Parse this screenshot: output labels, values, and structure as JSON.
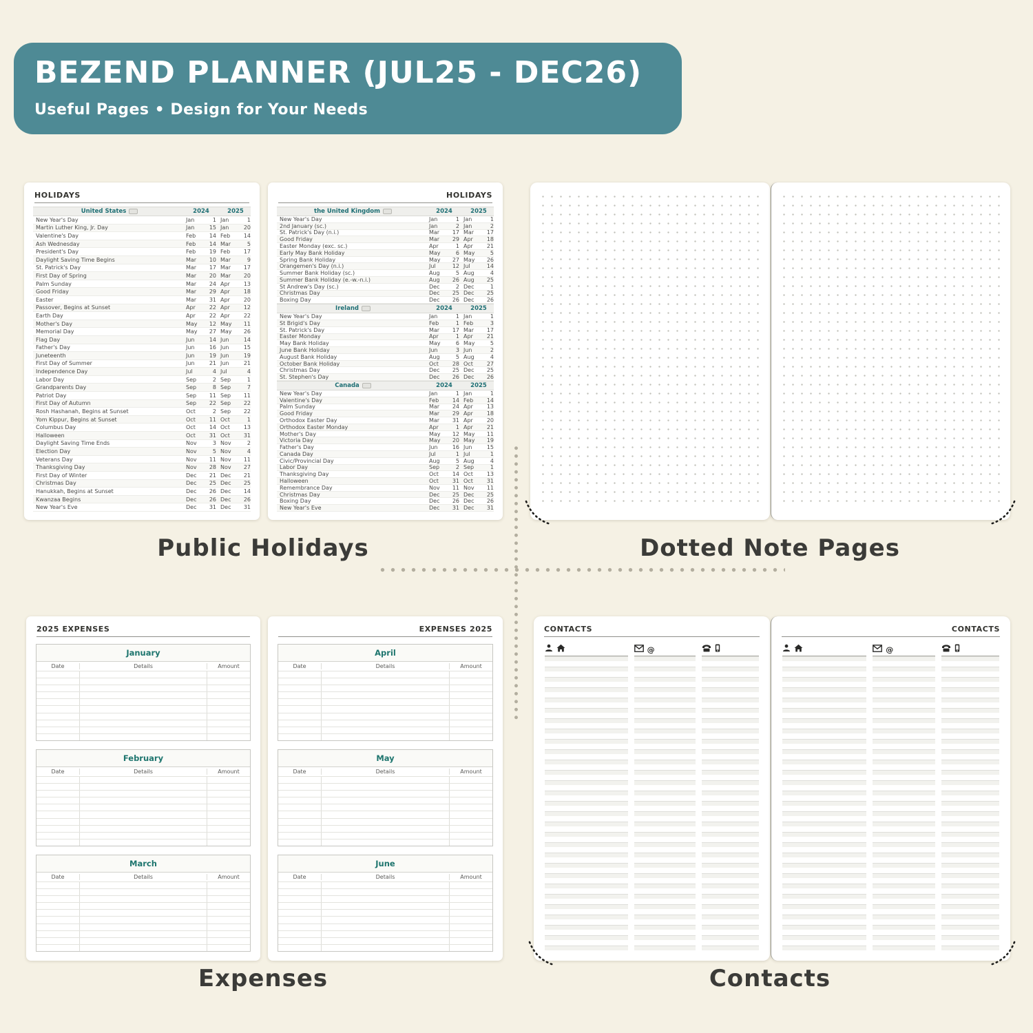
{
  "banner": {
    "title": "BEZEND PLANNER (JUL25 - DEC26)",
    "subtitle": "Useful Pages  •  Design for Your Needs",
    "bg_color": "#4e8a95",
    "text_color": "#ffffff"
  },
  "captions": {
    "holidays": "Public Holidays",
    "dotted": "Dotted Note Pages",
    "expenses": "Expenses",
    "contacts": "Contacts"
  },
  "colors": {
    "canvas": "#f5f1e4",
    "accent_teal": "#1e756e",
    "header_teal": "#1e6f74",
    "page_white": "#ffffff",
    "caption_text": "#3b3b38"
  },
  "holidays": {
    "page_title": "HOLIDAYS",
    "year_columns": [
      "2024",
      "2025"
    ],
    "sections": [
      {
        "country": "United States",
        "page": "left",
        "rows": [
          [
            "New Year's Day",
            "Jan",
            "1",
            "Jan",
            "1"
          ],
          [
            "Martin Luther King, Jr. Day",
            "Jan",
            "15",
            "Jan",
            "20"
          ],
          [
            "Valentine's Day",
            "Feb",
            "14",
            "Feb",
            "14"
          ],
          [
            "Ash Wednesday",
            "Feb",
            "14",
            "Mar",
            "5"
          ],
          [
            "President's Day",
            "Feb",
            "19",
            "Feb",
            "17"
          ],
          [
            "Daylight Saving Time Begins",
            "Mar",
            "10",
            "Mar",
            "9"
          ],
          [
            "St. Patrick's Day",
            "Mar",
            "17",
            "Mar",
            "17"
          ],
          [
            "First Day of Spring",
            "Mar",
            "20",
            "Mar",
            "20"
          ],
          [
            "Palm Sunday",
            "Mar",
            "24",
            "Apr",
            "13"
          ],
          [
            "Good Friday",
            "Mar",
            "29",
            "Apr",
            "18"
          ],
          [
            "Easter",
            "Mar",
            "31",
            "Apr",
            "20"
          ],
          [
            "Passover, Begins at Sunset",
            "Apr",
            "22",
            "Apr",
            "12"
          ],
          [
            "Earth Day",
            "Apr",
            "22",
            "Apr",
            "22"
          ],
          [
            "Mother's Day",
            "May",
            "12",
            "May",
            "11"
          ],
          [
            "Memorial Day",
            "May",
            "27",
            "May",
            "26"
          ],
          [
            "Flag Day",
            "Jun",
            "14",
            "Jun",
            "14"
          ],
          [
            "Father's Day",
            "Jun",
            "16",
            "Jun",
            "15"
          ],
          [
            "Juneteenth",
            "Jun",
            "19",
            "Jun",
            "19"
          ],
          [
            "First Day of Summer",
            "Jun",
            "21",
            "Jun",
            "21"
          ],
          [
            "Independence Day",
            "Jul",
            "4",
            "Jul",
            "4"
          ],
          [
            "Labor Day",
            "Sep",
            "2",
            "Sep",
            "1"
          ],
          [
            "Grandparents Day",
            "Sep",
            "8",
            "Sep",
            "7"
          ],
          [
            "Patriot Day",
            "Sep",
            "11",
            "Sep",
            "11"
          ],
          [
            "First Day of Autumn",
            "Sep",
            "22",
            "Sep",
            "22"
          ],
          [
            "Rosh Hashanah, Begins at Sunset",
            "Oct",
            "2",
            "Sep",
            "22"
          ],
          [
            "Yom Kippur, Begins at Sunset",
            "Oct",
            "11",
            "Oct",
            "1"
          ],
          [
            "Columbus Day",
            "Oct",
            "14",
            "Oct",
            "13"
          ],
          [
            "Halloween",
            "Oct",
            "31",
            "Oct",
            "31"
          ],
          [
            "Daylight Saving Time Ends",
            "Nov",
            "3",
            "Nov",
            "2"
          ],
          [
            "Election Day",
            "Nov",
            "5",
            "Nov",
            "4"
          ],
          [
            "Veterans Day",
            "Nov",
            "11",
            "Nov",
            "11"
          ],
          [
            "Thanksgiving Day",
            "Nov",
            "28",
            "Nov",
            "27"
          ],
          [
            "First Day of Winter",
            "Dec",
            "21",
            "Dec",
            "21"
          ],
          [
            "Christmas Day",
            "Dec",
            "25",
            "Dec",
            "25"
          ],
          [
            "Hanukkah, Begins at Sunset",
            "Dec",
            "26",
            "Dec",
            "14"
          ],
          [
            "Kwanzaa Begins",
            "Dec",
            "26",
            "Dec",
            "26"
          ],
          [
            "New Year's Eve",
            "Dec",
            "31",
            "Dec",
            "31"
          ]
        ]
      },
      {
        "country": "the United Kingdom",
        "page": "right",
        "rows": [
          [
            "New Year's Day",
            "Jan",
            "1",
            "Jan",
            "1"
          ],
          [
            "2nd January (sc.)",
            "Jan",
            "2",
            "Jan",
            "2"
          ],
          [
            "St. Patrick's Day (n.i.)",
            "Mar",
            "17",
            "Mar",
            "17"
          ],
          [
            "Good Friday",
            "Mar",
            "29",
            "Apr",
            "18"
          ],
          [
            "Easter Monday (exc. sc.)",
            "Apr",
            "1",
            "Apr",
            "21"
          ],
          [
            "Early May Bank Holiday",
            "May",
            "6",
            "May",
            "5"
          ],
          [
            "Spring Bank Holiday",
            "May",
            "27",
            "May",
            "26"
          ],
          [
            "Orangemen's Day (n.i.)",
            "Jul",
            "12",
            "Jul",
            "14"
          ],
          [
            "Summer Bank Holiday (sc.)",
            "Aug",
            "5",
            "Aug",
            "4"
          ],
          [
            "Summer Bank Holiday (e.-w.-n.i.)",
            "Aug",
            "26",
            "Aug",
            "25"
          ],
          [
            "St Andrew's Day (sc.)",
            "Dec",
            "2",
            "Dec",
            "1"
          ],
          [
            "Christmas Day",
            "Dec",
            "25",
            "Dec",
            "25"
          ],
          [
            "Boxing Day",
            "Dec",
            "26",
            "Dec",
            "26"
          ]
        ]
      },
      {
        "country": "Ireland",
        "page": "right",
        "rows": [
          [
            "New Year's Day",
            "Jan",
            "1",
            "Jan",
            "1"
          ],
          [
            "St Brigid's Day",
            "Feb",
            "1",
            "Feb",
            "3"
          ],
          [
            "St. Patrick's Day",
            "Mar",
            "17",
            "Mar",
            "17"
          ],
          [
            "Easter Monday",
            "Apr",
            "1",
            "Apr",
            "21"
          ],
          [
            "May Bank Holiday",
            "May",
            "6",
            "May",
            "5"
          ],
          [
            "June Bank Holiday",
            "Jun",
            "3",
            "Jun",
            "2"
          ],
          [
            "August Bank Holiday",
            "Aug",
            "5",
            "Aug",
            "4"
          ],
          [
            "October Bank Holiday",
            "Oct",
            "28",
            "Oct",
            "27"
          ],
          [
            "Christmas Day",
            "Dec",
            "25",
            "Dec",
            "25"
          ],
          [
            "St. Stephen's Day",
            "Dec",
            "26",
            "Dec",
            "26"
          ]
        ]
      },
      {
        "country": "Canada",
        "page": "right",
        "rows": [
          [
            "New Year's Day",
            "Jan",
            "1",
            "Jan",
            "1"
          ],
          [
            "Valentine's Day",
            "Feb",
            "14",
            "Feb",
            "14"
          ],
          [
            "Palm Sunday",
            "Mar",
            "24",
            "Apr",
            "13"
          ],
          [
            "Good Friday",
            "Mar",
            "29",
            "Apr",
            "18"
          ],
          [
            "Orthodox Easter Day",
            "Mar",
            "31",
            "Apr",
            "20"
          ],
          [
            "Orthodox Easter Monday",
            "Apr",
            "1",
            "Apr",
            "21"
          ],
          [
            "Mother's Day",
            "May",
            "12",
            "May",
            "11"
          ],
          [
            "Victoria Day",
            "May",
            "20",
            "May",
            "19"
          ],
          [
            "Father's Day",
            "Jun",
            "16",
            "Jun",
            "15"
          ],
          [
            "Canada Day",
            "Jul",
            "1",
            "Jul",
            "1"
          ],
          [
            "Civic/Provincial Day",
            "Aug",
            "5",
            "Aug",
            "4"
          ],
          [
            "Labor Day",
            "Sep",
            "2",
            "Sep",
            "1"
          ],
          [
            "Thanksgiving Day",
            "Oct",
            "14",
            "Oct",
            "13"
          ],
          [
            "Halloween",
            "Oct",
            "31",
            "Oct",
            "31"
          ],
          [
            "Remembrance Day",
            "Nov",
            "11",
            "Nov",
            "11"
          ],
          [
            "Christmas Day",
            "Dec",
            "25",
            "Dec",
            "25"
          ],
          [
            "Boxing Day",
            "Dec",
            "26",
            "Dec",
            "26"
          ],
          [
            "New Year's Eve",
            "Dec",
            "31",
            "Dec",
            "31"
          ]
        ]
      }
    ]
  },
  "expenses": {
    "left_page_title": "2025 EXPENSES",
    "right_page_title": "EXPENSES 2025",
    "columns": [
      "Date",
      "Details",
      "Amount"
    ],
    "left_months": [
      "January",
      "February",
      "March"
    ],
    "right_months": [
      "April",
      "May",
      "June"
    ],
    "rows_per_table": 10
  },
  "contacts": {
    "left_page_title": "CONTACTS",
    "right_page_title": "CONTACTS",
    "columns": [
      {
        "icons": [
          "person-icon",
          "home-icon"
        ]
      },
      {
        "icons": [
          "envelope-icon",
          "at-icon"
        ]
      },
      {
        "icons": [
          "desk-phone-icon",
          "mobile-phone-icon"
        ]
      }
    ]
  }
}
